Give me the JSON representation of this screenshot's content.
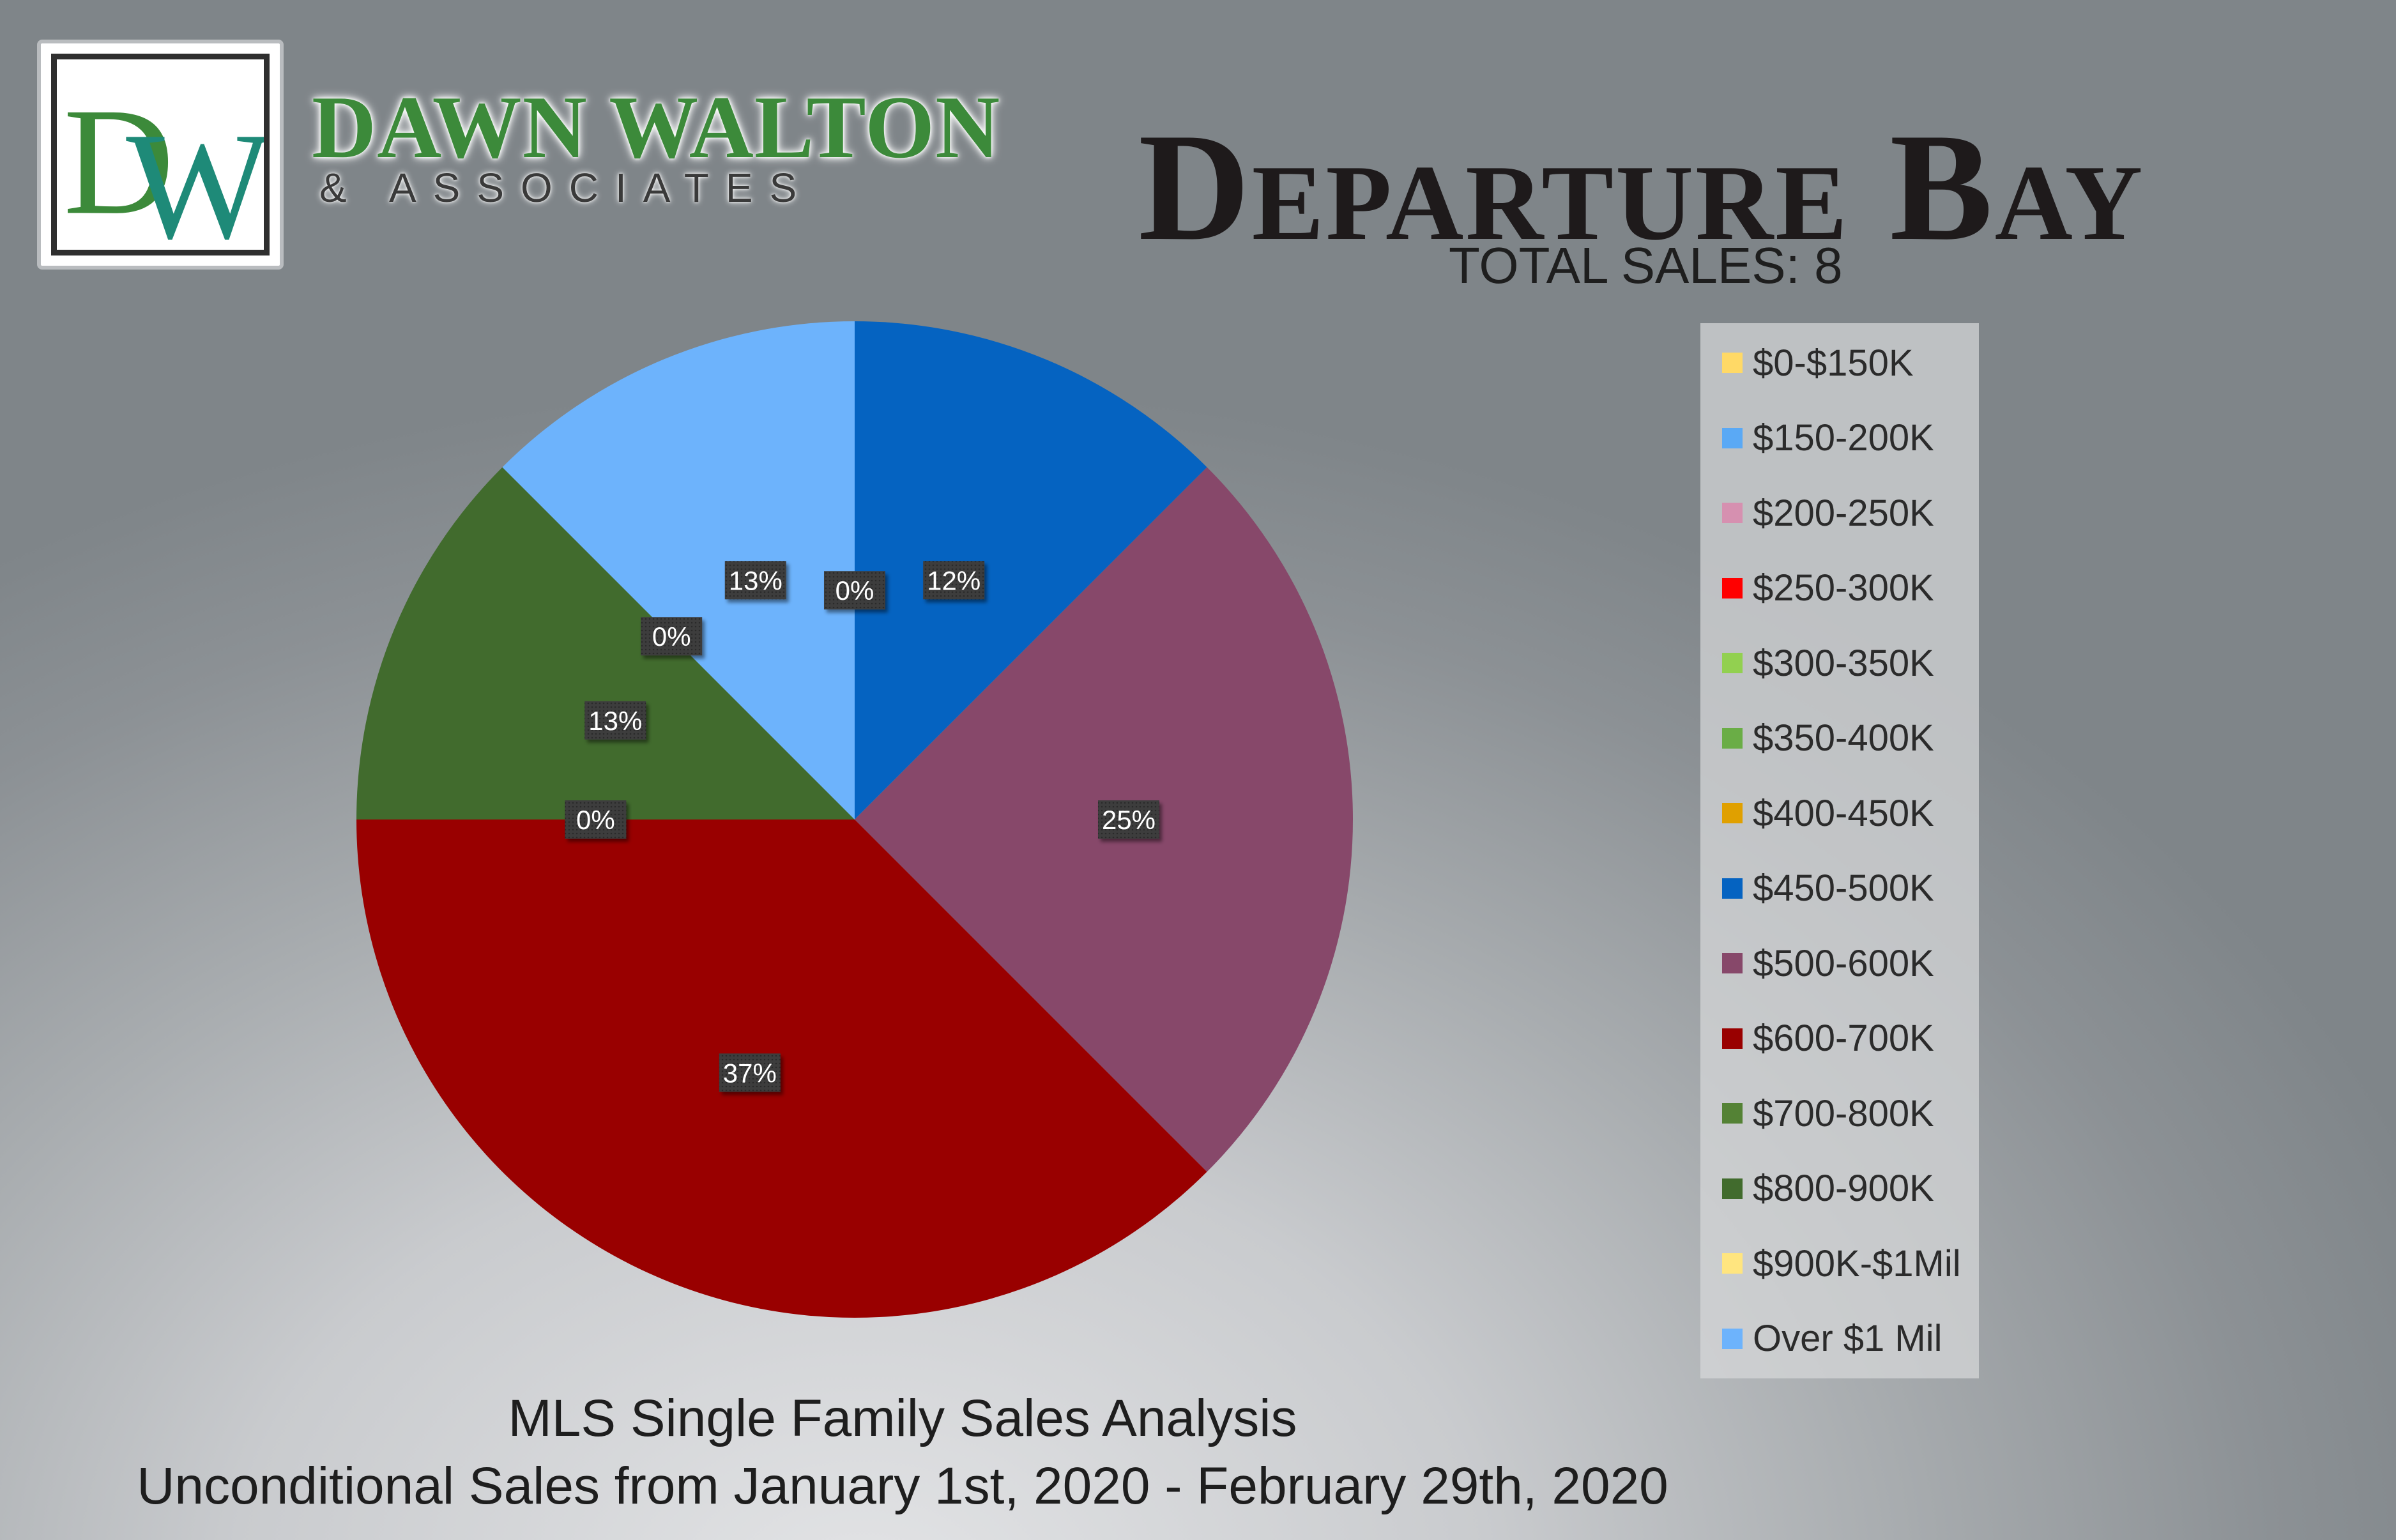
{
  "branding": {
    "logo_initials": "DW",
    "name": "DAWN WALTON",
    "subtitle": "& ASSOCIATES",
    "logo_green": "#3c8a3a",
    "logo_teal": "#1e8a78"
  },
  "header": {
    "title": "Departure Bay",
    "total_sales": "TOTAL SALES: 8"
  },
  "footer": {
    "line1": "MLS Single Family Sales Analysis",
    "line2": "Unconditional Sales from January 1st, 2020 - February 29th, 2020"
  },
  "chart_data": {
    "type": "pie",
    "categories": [
      "$0-$150K",
      "$150-200K",
      "$200-250K",
      "$250-300K",
      "$300-350K",
      "$350-400K",
      "$400-450K",
      "$450-500K",
      "$500-600K",
      "$600-700K",
      "$700-800K",
      "$800-900K",
      "$900K-$1Mil",
      "Over $1 Mil"
    ],
    "values": [
      0,
      0,
      0,
      0,
      0,
      0,
      0,
      1,
      2,
      3,
      0,
      1,
      0,
      1
    ],
    "colors": [
      "#ffd966",
      "#5aa9f5",
      "#d690b0",
      "#ff0000",
      "#92d050",
      "#6aad46",
      "#e0a000",
      "#0563c1",
      "#87486a",
      "#990000",
      "#548235",
      "#416b2d",
      "#ffe57f",
      "#6db3fc"
    ],
    "data_labels": [
      {
        "index": 7,
        "text": "12%"
      },
      {
        "index": 8,
        "text": "25%"
      },
      {
        "index": 9,
        "text": "37%"
      },
      {
        "index": 10,
        "text": "0%"
      },
      {
        "index": 11,
        "text": "13%"
      },
      {
        "index": 12,
        "text": "0%"
      },
      {
        "index": 13,
        "text": "13%"
      },
      {
        "index": 0,
        "text": "0%"
      }
    ],
    "start_angle_deg": 0,
    "direction": "clockwise",
    "legend_position": "right"
  }
}
